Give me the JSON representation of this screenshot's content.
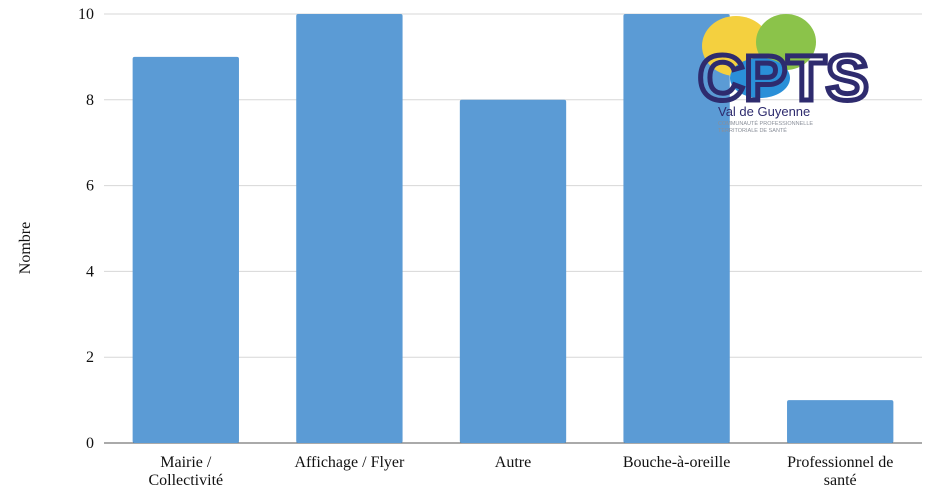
{
  "chart_data": {
    "type": "bar",
    "categories": [
      [
        "Mairie /",
        "Collectivité"
      ],
      [
        "Affichage / Flyer"
      ],
      [
        "Autre"
      ],
      [
        "Bouche-à-oreille"
      ],
      [
        "Professionnel de",
        "santé"
      ]
    ],
    "values": [
      9,
      10,
      8,
      10,
      1
    ],
    "ylabel": "Nombre",
    "xlabel": "",
    "ylim": [
      0,
      10
    ],
    "yticks": [
      0,
      2,
      4,
      6,
      8,
      10
    ],
    "grid": true,
    "bar_color": "#5b9bd5"
  },
  "logo": {
    "letters": "CPTS",
    "town": "Val de Guyenne",
    "subtitle_line1": "COMMUNAUTÉ PROFESSIONNELLE",
    "subtitle_line2": "TERRITORIALE DE SANTÉ",
    "colors": {
      "yellow": "#f4d03f",
      "green": "#8bc34a",
      "blue": "#2a8fd8",
      "navy": "#2e2b6e"
    }
  }
}
